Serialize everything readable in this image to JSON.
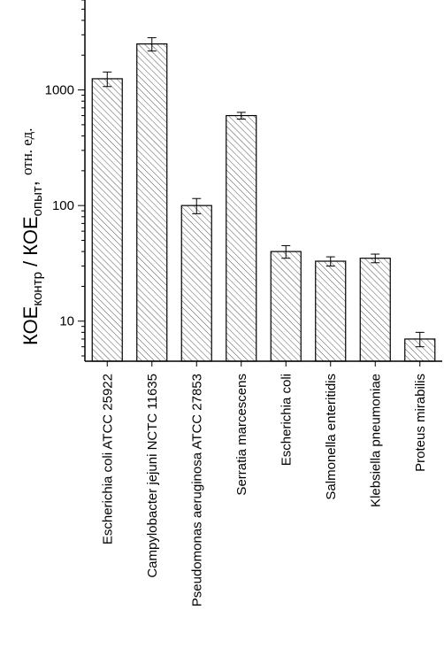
{
  "chart_data": {
    "type": "bar",
    "yscale": "log",
    "ylim": [
      4.5,
      6000
    ],
    "yticks": [
      10,
      100,
      1000
    ],
    "ytick_labels": [
      "10",
      "100",
      "1000"
    ],
    "ylabel": {
      "part1": "КОЕ",
      "sub1": "контр",
      "part2": " / КОЕ",
      "sub2": "опыт",
      "part3": ", ",
      "unit": "отн. ед."
    },
    "categories": [
      "Escherichia coli ATCC 25922",
      "Campylobacter jejuni NCTC 11635",
      "Pseudomonas aeruginosa  ATCC 27853",
      "Serratia marcescens",
      "Escherichia coli",
      "Salmonella enteritidis",
      "Klebsiella pneumoniae",
      "Proteus mirabilis"
    ],
    "values": [
      1250,
      2500,
      100,
      600,
      40,
      33,
      35,
      7
    ],
    "errors": [
      180,
      330,
      15,
      40,
      5,
      3,
      3,
      1
    ],
    "bar_pattern": "diagonal-hatch",
    "colors": {
      "axis": "#000000",
      "bar_fill": "#ffffff",
      "hatch": "#555555"
    }
  }
}
